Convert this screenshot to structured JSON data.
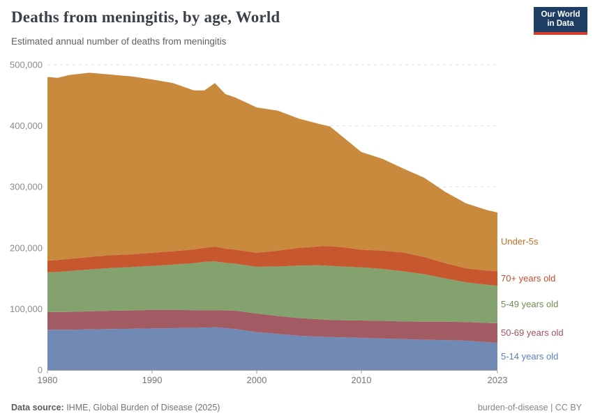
{
  "header": {
    "title": "Deaths from meningitis, by age, World",
    "subtitle": "Estimated annual number of deaths from meningitis",
    "logo_line1": "Our World",
    "logo_line2": "in Data",
    "logo_bg": "#1d3d63",
    "logo_bar": "#d63c30"
  },
  "chart_data": {
    "type": "area",
    "stacked": true,
    "title": "Deaths from meningitis, by age, World",
    "subtitle": "Estimated annual number of deaths from meningitis",
    "xlabel": "",
    "ylabel": "",
    "xlim": [
      1980,
      2023
    ],
    "ylim": [
      0,
      500000
    ],
    "grid": "dashed-horizontal",
    "legend_position": "right-of-plot-colored-text",
    "x": [
      1980,
      1981,
      1982,
      1984,
      1986,
      1988,
      1990,
      1992,
      1994,
      1995,
      1996,
      1997,
      1998,
      2000,
      2002,
      2004,
      2006,
      2007,
      2008,
      2010,
      2012,
      2014,
      2016,
      2018,
      2020,
      2022,
      2023
    ],
    "series": [
      {
        "name": "5-14 years old",
        "area_color": "#7189b5",
        "label_color": "#5c7fbe",
        "values": [
          66000,
          66000,
          66000,
          66500,
          67000,
          67500,
          68000,
          68500,
          69000,
          69500,
          70000,
          68500,
          67000,
          62000,
          59000,
          56000,
          54500,
          54000,
          53500,
          52500,
          51500,
          50500,
          49500,
          49000,
          48000,
          45500,
          44500
        ]
      },
      {
        "name": "50-69 years old",
        "area_color": "#a25b63",
        "label_color": "#a5525b",
        "values": [
          29000,
          29000,
          29000,
          29500,
          30000,
          30000,
          30500,
          30000,
          29000,
          28500,
          28000,
          29000,
          30000,
          30500,
          29500,
          29000,
          28500,
          28000,
          28000,
          28500,
          29000,
          29000,
          29500,
          30000,
          30500,
          31500,
          32000
        ]
      },
      {
        "name": "5-49 years old",
        "area_color": "#83a26e",
        "label_color": "#6d8e54",
        "values": [
          65000,
          65500,
          67000,
          68500,
          70000,
          71000,
          72000,
          74000,
          77000,
          79000,
          80000,
          78000,
          77000,
          76500,
          81000,
          86000,
          88500,
          88500,
          88000,
          87000,
          85000,
          82000,
          78000,
          71000,
          65000,
          62500,
          61500
        ]
      },
      {
        "name": "70+ years old",
        "area_color": "#c6572f",
        "label_color": "#c44e2c",
        "values": [
          19000,
          19500,
          20000,
          20500,
          21000,
          21000,
          21500,
          22000,
          22500,
          23000,
          24000,
          23500,
          23000,
          23000,
          26000,
          29000,
          31000,
          32500,
          32000,
          29000,
          30000,
          31000,
          28000,
          25000,
          23000,
          23500,
          23600
        ]
      },
      {
        "name": "Under-5s",
        "area_color": "#c98a3e",
        "label_color": "#bf7125",
        "values": [
          301000,
          298500,
          301000,
          302000,
          296000,
          291500,
          284000,
          275500,
          260500,
          258000,
          268000,
          253000,
          249000,
          238000,
          229500,
          212000,
          200500,
          196000,
          183500,
          160000,
          150500,
          137500,
          130000,
          117000,
          106500,
          99000,
          96400
        ]
      }
    ],
    "y_ticks": [
      0,
      100000,
      200000,
      300000,
      400000,
      500000
    ],
    "x_ticks": [
      1980,
      1990,
      2000,
      2010,
      2023
    ]
  },
  "axes": {
    "y_tick_labels": [
      "0",
      "100,000",
      "200,000",
      "300,000",
      "400,000",
      "500,000"
    ],
    "x_tick_labels": [
      "1980",
      "1990",
      "2000",
      "2010",
      "2023"
    ]
  },
  "footer": {
    "source_label": "Data source:",
    "source_value": " IHME, Global Burden of Disease (2025)",
    "slug": "burden-of-disease",
    "divider": " | ",
    "license": "CC BY"
  }
}
